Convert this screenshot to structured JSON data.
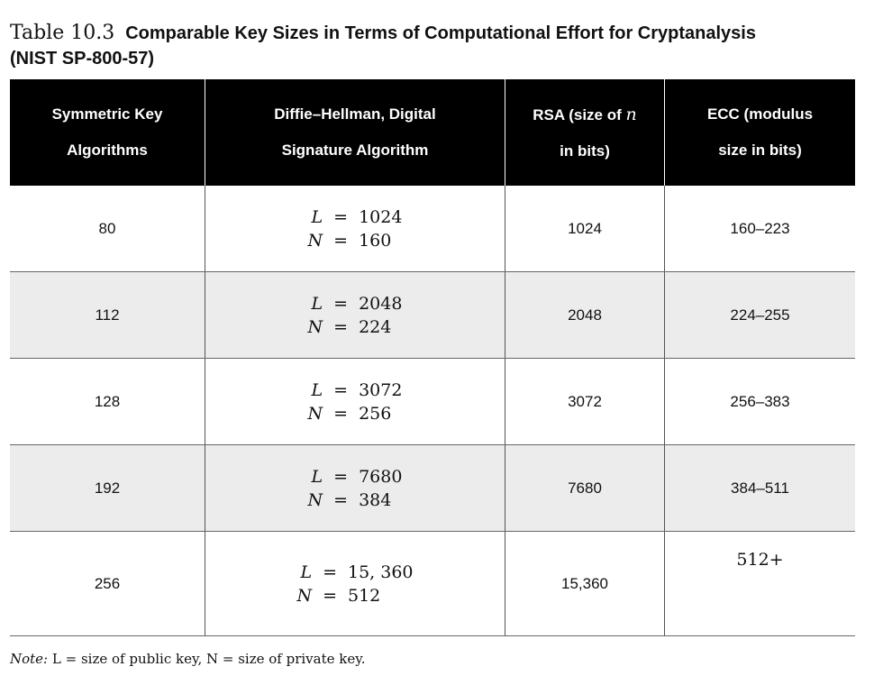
{
  "title": {
    "number": "Table 10.3",
    "caption_line1": "Comparable Key Sizes in Terms of Computational Effort for Cryptanalysis",
    "caption_line2": "(NIST SP-800-57)"
  },
  "headers": {
    "symmetric": [
      "Symmetric Key",
      "Algorithms"
    ],
    "dh": [
      "Diffie–Hellman, Digital",
      "Signature Algorithm"
    ],
    "rsa_line1": "RSA (size of",
    "rsa_var": "n",
    "rsa_line2": "in bits)",
    "ecc": [
      "ECC (modulus",
      "size in bits)"
    ]
  },
  "rows": [
    {
      "symmetric": "80",
      "L": "1024",
      "N": "160",
      "rsa": "1024",
      "ecc": "160–223"
    },
    {
      "symmetric": "112",
      "L": "2048",
      "N": "224",
      "rsa": "2048",
      "ecc": "224–255"
    },
    {
      "symmetric": "128",
      "L": "3072",
      "N": "256",
      "rsa": "3072",
      "ecc": "256–383"
    },
    {
      "symmetric": "192",
      "L": "7680",
      "N": "384",
      "rsa": "7680",
      "ecc": "384–511"
    },
    {
      "symmetric": "256",
      "L": "15, 360",
      "N": "512",
      "rsa": "15,360",
      "ecc": "512+"
    }
  ],
  "eq": {
    "L": "L",
    "N": "N",
    "sign": "="
  },
  "note": {
    "prefix": "Note:",
    "text": "L = size of public key, N = size of private key."
  }
}
